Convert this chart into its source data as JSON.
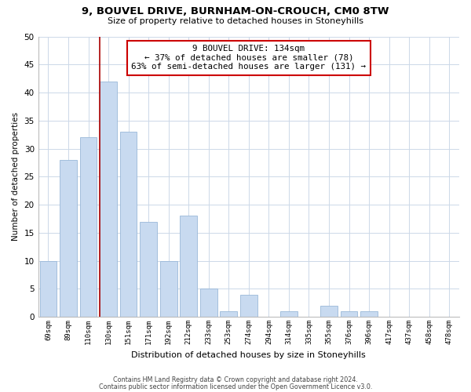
{
  "title1": "9, BOUVEL DRIVE, BURNHAM-ON-CROUCH, CM0 8TW",
  "title2": "Size of property relative to detached houses in Stoneyhills",
  "xlabel": "Distribution of detached houses by size in Stoneyhills",
  "ylabel": "Number of detached properties",
  "bar_labels": [
    "69sqm",
    "89sqm",
    "110sqm",
    "130sqm",
    "151sqm",
    "171sqm",
    "192sqm",
    "212sqm",
    "233sqm",
    "253sqm",
    "274sqm",
    "294sqm",
    "314sqm",
    "335sqm",
    "355sqm",
    "376sqm",
    "396sqm",
    "417sqm",
    "437sqm",
    "458sqm",
    "478sqm"
  ],
  "bar_values": [
    10,
    28,
    32,
    42,
    33,
    17,
    10,
    18,
    5,
    1,
    4,
    0,
    1,
    0,
    2,
    1,
    1,
    0,
    0,
    0,
    0
  ],
  "bar_color": "#c8daf0",
  "bar_edge_color": "#9ab8d8",
  "highlight_index": 3,
  "highlight_line_color": "#aa0000",
  "ylim": [
    0,
    50
  ],
  "yticks": [
    0,
    5,
    10,
    15,
    20,
    25,
    30,
    35,
    40,
    45,
    50
  ],
  "annotation_line1": "9 BOUVEL DRIVE: 134sqm",
  "annotation_line2": "← 37% of detached houses are smaller (78)",
  "annotation_line3": "63% of semi-detached houses are larger (131) →",
  "annotation_box_color": "#ffffff",
  "annotation_box_edge": "#cc0000",
  "footer1": "Contains HM Land Registry data © Crown copyright and database right 2024.",
  "footer2": "Contains public sector information licensed under the Open Government Licence v3.0.",
  "background_color": "#ffffff",
  "grid_color": "#ccd8e8"
}
